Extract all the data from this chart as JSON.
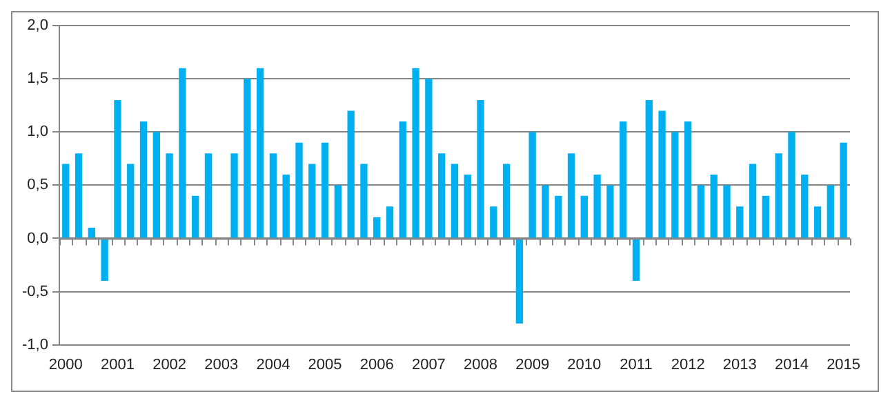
{
  "chart_data": {
    "type": "bar",
    "categories": [
      "2000",
      null,
      null,
      null,
      "2001",
      null,
      null,
      null,
      "2002",
      null,
      null,
      null,
      "2003",
      null,
      null,
      null,
      "2004",
      null,
      null,
      null,
      "2005",
      null,
      null,
      null,
      "2006",
      null,
      null,
      null,
      "2007",
      null,
      null,
      null,
      "2008",
      null,
      null,
      null,
      "2009",
      null,
      null,
      null,
      "2010",
      null,
      null,
      null,
      "2011",
      null,
      null,
      null,
      "2012",
      null,
      null,
      null,
      "2013",
      null,
      null,
      null,
      "2014",
      null,
      null,
      null,
      "2015"
    ],
    "values": [
      0.7,
      0.8,
      0.1,
      -0.4,
      1.3,
      0.7,
      1.1,
      1.0,
      0.8,
      1.6,
      0.4,
      0.8,
      0,
      0.8,
      1.5,
      1.6,
      0.8,
      0.6,
      0.9,
      0.7,
      0.9,
      0.5,
      1.2,
      0.7,
      0.2,
      0.3,
      1.1,
      1.6,
      1.5,
      0.8,
      0.7,
      0.6,
      1.3,
      0.3,
      0.7,
      -0.8,
      1.0,
      0.5,
      0.4,
      0.8,
      0.4,
      0.6,
      0.5,
      1.1,
      -0.4,
      1.3,
      1.2,
      1.0,
      1.1,
      0.5,
      0.6,
      0.5,
      0.3,
      0.7,
      0.4,
      0.8,
      1.0,
      0.6,
      0.3,
      0.5,
      0.9
    ],
    "color": "#00b0f0",
    "ylim": [
      -1,
      2
    ],
    "yticks": [
      {
        "value": -1,
        "label": "-1,0"
      },
      {
        "value": -0.5,
        "label": "-0,5"
      },
      {
        "value": 0,
        "label": "0,0"
      },
      {
        "value": 0.5,
        "label": "0,5"
      },
      {
        "value": 1,
        "label": "1,0"
      },
      {
        "value": 1.5,
        "label": "1,5"
      },
      {
        "value": 2,
        "label": "2,0"
      }
    ],
    "grid": "y"
  }
}
